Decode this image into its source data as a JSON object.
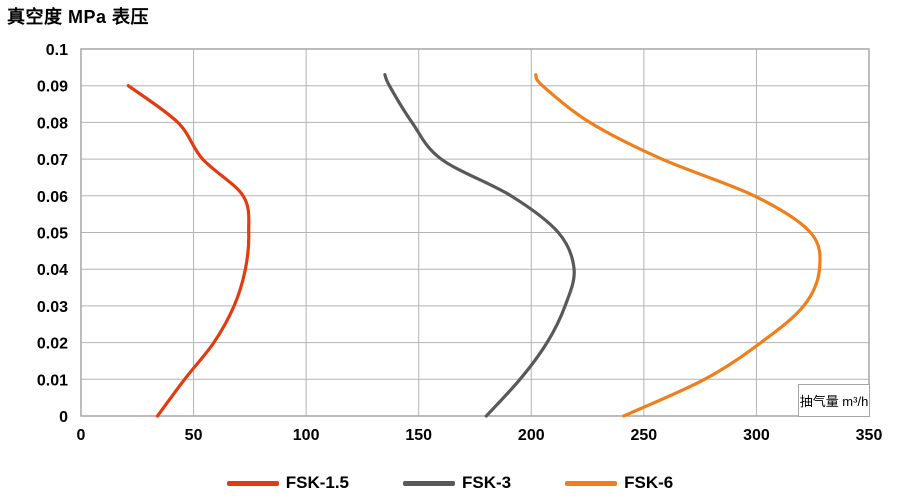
{
  "title": "真空度 MPa 表压",
  "chart_data": {
    "type": "line",
    "title": "真空度 MPa 表压",
    "xlabel": "抽气量 m³/h",
    "ylabel": "真空度 MPa 表压",
    "xlim": [
      0,
      350
    ],
    "ylim": [
      0,
      0.1
    ],
    "x_ticks": [
      0,
      50,
      100,
      150,
      200,
      250,
      300,
      350
    ],
    "y_ticks": [
      0,
      0.01,
      0.02,
      0.03,
      0.04,
      0.05,
      0.06,
      0.07,
      0.08,
      0.09,
      0.1
    ],
    "y_tick_labels": [
      "0",
      "0.01",
      "0.02",
      "0.03",
      "0.04",
      "0.05",
      "0.06",
      "0.07",
      "0.08",
      "0.09",
      "0.1"
    ],
    "grid": true,
    "legend_position": "bottom",
    "point_format": "[vacuum_MPa, flow_m3_per_h]",
    "series": [
      {
        "name": "FSK-1.5",
        "color": "#E23B10",
        "points": [
          [
            0,
            34
          ],
          [
            0.01,
            46
          ],
          [
            0.02,
            59
          ],
          [
            0.03,
            68
          ],
          [
            0.04,
            73
          ],
          [
            0.05,
            74.5
          ],
          [
            0.06,
            72
          ],
          [
            0.07,
            54
          ],
          [
            0.08,
            43
          ],
          [
            0.09,
            21
          ]
        ]
      },
      {
        "name": "FSK-3",
        "color": "#595959",
        "points": [
          [
            0,
            180
          ],
          [
            0.01,
            195
          ],
          [
            0.02,
            207
          ],
          [
            0.03,
            215
          ],
          [
            0.04,
            219
          ],
          [
            0.05,
            212
          ],
          [
            0.06,
            191
          ],
          [
            0.07,
            160
          ],
          [
            0.08,
            147
          ],
          [
            0.09,
            137
          ],
          [
            0.093,
            135
          ]
        ]
      },
      {
        "name": "FSK-6",
        "color": "#F07E1A",
        "points": [
          [
            0,
            241
          ],
          [
            0.01,
            277
          ],
          [
            0.02,
            302
          ],
          [
            0.03,
            321
          ],
          [
            0.04,
            328
          ],
          [
            0.05,
            324
          ],
          [
            0.06,
            299
          ],
          [
            0.07,
            258
          ],
          [
            0.08,
            226
          ],
          [
            0.09,
            205
          ],
          [
            0.093,
            202
          ]
        ]
      }
    ]
  }
}
